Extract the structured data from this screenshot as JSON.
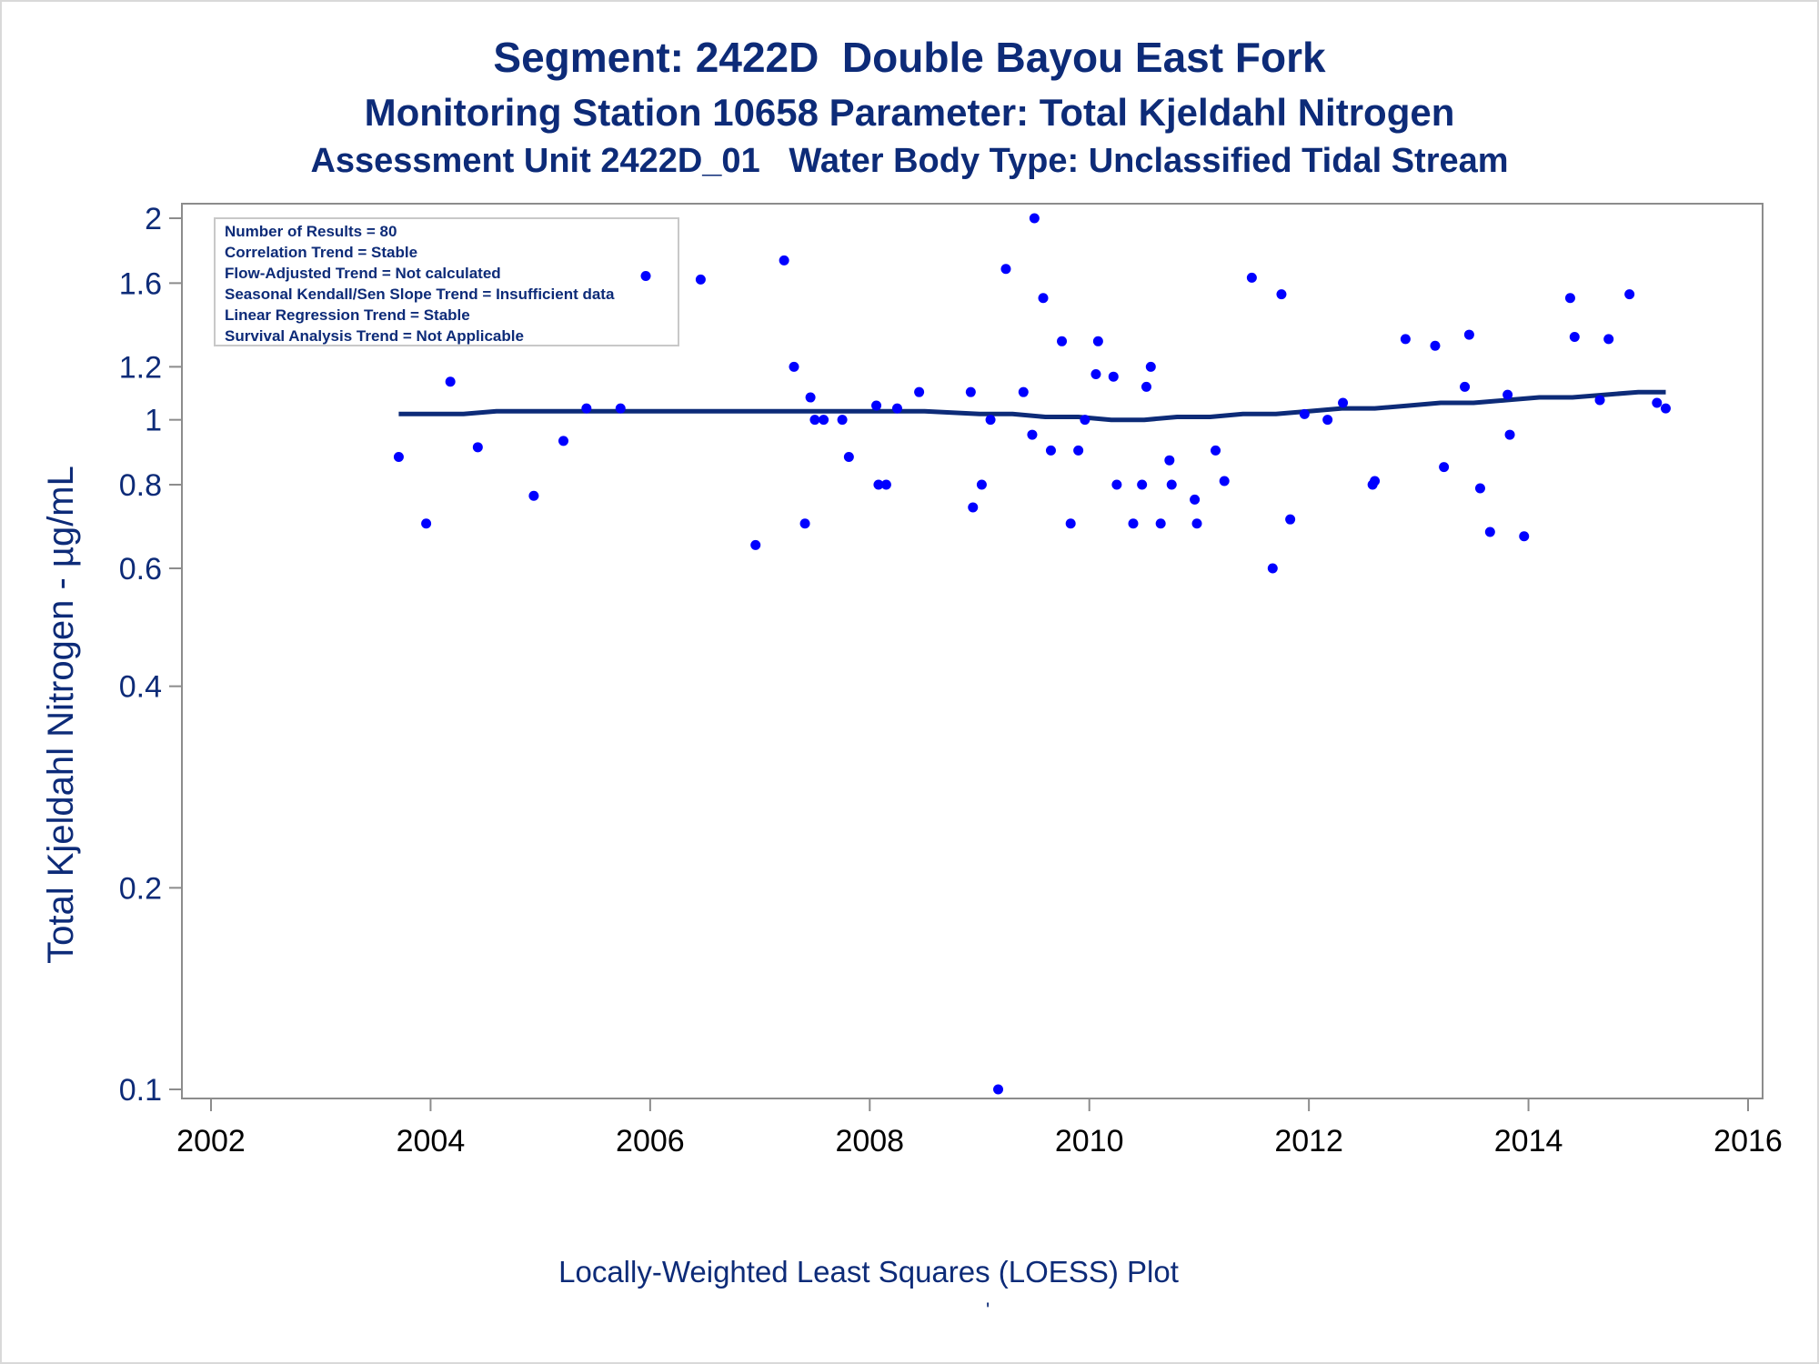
{
  "chart_data": {
    "type": "scatter",
    "title": "Segment: 2422D  Double Bayou East Fork",
    "subtitle": "Monitoring Station 10658 Parameter: Total Kjeldahl Nitrogen",
    "subtitle2": "Assessment Unit 2422D_01   Water Body Type: Unclassified Tidal Stream",
    "ylabel": "Total Kjeldahl Nitrogen -  µg/mL",
    "xlabel": "",
    "footnote": "Locally-Weighted Least Squares (LOESS) Plot",
    "footnote_mark": "'",
    "y_scale": "log",
    "xlim": [
      2002,
      2016
    ],
    "ylim": [
      0.1,
      2
    ],
    "x_ticks": [
      2002,
      2004,
      2006,
      2008,
      2010,
      2012,
      2014,
      2016
    ],
    "y_ticks": [
      0.1,
      0.2,
      0.4,
      0.6,
      0.8,
      1,
      1.2,
      1.6,
      2
    ],
    "y_tick_labels": [
      "0.1",
      "0.2",
      "0.4",
      "0.6",
      "0.8",
      "1",
      "1.2",
      "1.6",
      "2"
    ],
    "x_tick_labels": [
      "2002",
      "2004",
      "2006",
      "2008",
      "2010",
      "2012",
      "2014",
      "2016"
    ],
    "grid": false,
    "point_color": "#0000ff",
    "line_color": "#0d2b78",
    "inset_box": {
      "placement": "top-left",
      "lines": [
        "Number of Results = 80",
        "Correlation Trend = Stable",
        "Flow-Adjusted Trend = Not calculated",
        "Seasonal Kendall/Sen Slope Trend = Insufficient data",
        "Linear Regression Trend = Stable",
        "Survival Analysis Trend = Not Applicable"
      ]
    },
    "series": [
      {
        "type": "scatter",
        "points": [
          [
            2003.71,
            0.88
          ],
          [
            2003.96,
            0.7
          ],
          [
            2004.18,
            1.14
          ],
          [
            2004.43,
            0.91
          ],
          [
            2004.94,
            0.77
          ],
          [
            2005.21,
            0.93
          ],
          [
            2005.42,
            1.04
          ],
          [
            2005.73,
            1.04
          ],
          [
            2005.96,
            1.64
          ],
          [
            2006.46,
            1.62
          ],
          [
            2006.96,
            0.65
          ],
          [
            2007.22,
            1.73
          ],
          [
            2007.31,
            1.2
          ],
          [
            2007.41,
            0.7
          ],
          [
            2007.46,
            1.08
          ],
          [
            2007.5,
            1.0
          ],
          [
            2007.58,
            1.0
          ],
          [
            2007.75,
            1.0
          ],
          [
            2007.81,
            0.88
          ],
          [
            2008.06,
            1.05
          ],
          [
            2008.08,
            0.8
          ],
          [
            2008.15,
            0.8
          ],
          [
            2008.25,
            1.04
          ],
          [
            2008.45,
            1.1
          ],
          [
            2008.92,
            1.1
          ],
          [
            2008.94,
            0.74
          ],
          [
            2009.02,
            0.8
          ],
          [
            2009.1,
            1.0
          ],
          [
            2009.17,
            0.1
          ],
          [
            2009.24,
            1.68
          ],
          [
            2009.4,
            1.1
          ],
          [
            2009.48,
            0.95
          ],
          [
            2009.5,
            2.0
          ],
          [
            2009.58,
            1.52
          ],
          [
            2009.65,
            0.9
          ],
          [
            2009.75,
            1.31
          ],
          [
            2009.83,
            0.7
          ],
          [
            2009.9,
            0.9
          ],
          [
            2009.96,
            1.0
          ],
          [
            2010.06,
            1.17
          ],
          [
            2010.08,
            1.31
          ],
          [
            2010.22,
            1.16
          ],
          [
            2010.25,
            0.8
          ],
          [
            2010.4,
            0.7
          ],
          [
            2010.48,
            0.8
          ],
          [
            2010.52,
            1.12
          ],
          [
            2010.56,
            1.2
          ],
          [
            2010.65,
            0.7
          ],
          [
            2010.73,
            0.87
          ],
          [
            2010.75,
            0.8
          ],
          [
            2010.96,
            0.76
          ],
          [
            2010.98,
            0.7
          ],
          [
            2011.15,
            0.9
          ],
          [
            2011.23,
            0.81
          ],
          [
            2011.48,
            1.63
          ],
          [
            2011.67,
            0.6
          ],
          [
            2011.75,
            1.54
          ],
          [
            2011.83,
            0.71
          ],
          [
            2011.96,
            1.02
          ],
          [
            2012.17,
            1.0
          ],
          [
            2012.31,
            1.06
          ],
          [
            2012.58,
            0.8
          ],
          [
            2012.6,
            0.81
          ],
          [
            2012.88,
            1.32
          ],
          [
            2013.15,
            1.29
          ],
          [
            2013.23,
            0.85
          ],
          [
            2013.42,
            1.12
          ],
          [
            2013.46,
            1.34
          ],
          [
            2013.56,
            0.79
          ],
          [
            2013.65,
            0.68
          ],
          [
            2013.81,
            1.09
          ],
          [
            2013.83,
            0.95
          ],
          [
            2013.96,
            0.67
          ],
          [
            2014.38,
            1.52
          ],
          [
            2014.42,
            1.33
          ],
          [
            2014.65,
            1.07
          ],
          [
            2014.73,
            1.32
          ],
          [
            2014.92,
            1.54
          ],
          [
            2015.17,
            1.06
          ],
          [
            2015.25,
            1.04
          ]
        ]
      },
      {
        "type": "loess-line",
        "points": [
          [
            2003.71,
            1.02
          ],
          [
            2004.0,
            1.02
          ],
          [
            2004.3,
            1.02
          ],
          [
            2004.6,
            1.03
          ],
          [
            2005.0,
            1.03
          ],
          [
            2005.5,
            1.03
          ],
          [
            2006.0,
            1.03
          ],
          [
            2006.5,
            1.03
          ],
          [
            2007.0,
            1.03
          ],
          [
            2007.5,
            1.03
          ],
          [
            2008.0,
            1.03
          ],
          [
            2008.5,
            1.03
          ],
          [
            2009.0,
            1.02
          ],
          [
            2009.3,
            1.02
          ],
          [
            2009.6,
            1.01
          ],
          [
            2009.9,
            1.01
          ],
          [
            2010.2,
            1.0
          ],
          [
            2010.5,
            1.0
          ],
          [
            2010.8,
            1.01
          ],
          [
            2011.1,
            1.01
          ],
          [
            2011.4,
            1.02
          ],
          [
            2011.7,
            1.02
          ],
          [
            2012.0,
            1.03
          ],
          [
            2012.3,
            1.04
          ],
          [
            2012.6,
            1.04
          ],
          [
            2012.9,
            1.05
          ],
          [
            2013.2,
            1.06
          ],
          [
            2013.5,
            1.06
          ],
          [
            2013.8,
            1.07
          ],
          [
            2014.1,
            1.08
          ],
          [
            2014.4,
            1.08
          ],
          [
            2014.7,
            1.09
          ],
          [
            2015.0,
            1.1
          ],
          [
            2015.25,
            1.1
          ]
        ]
      }
    ]
  }
}
